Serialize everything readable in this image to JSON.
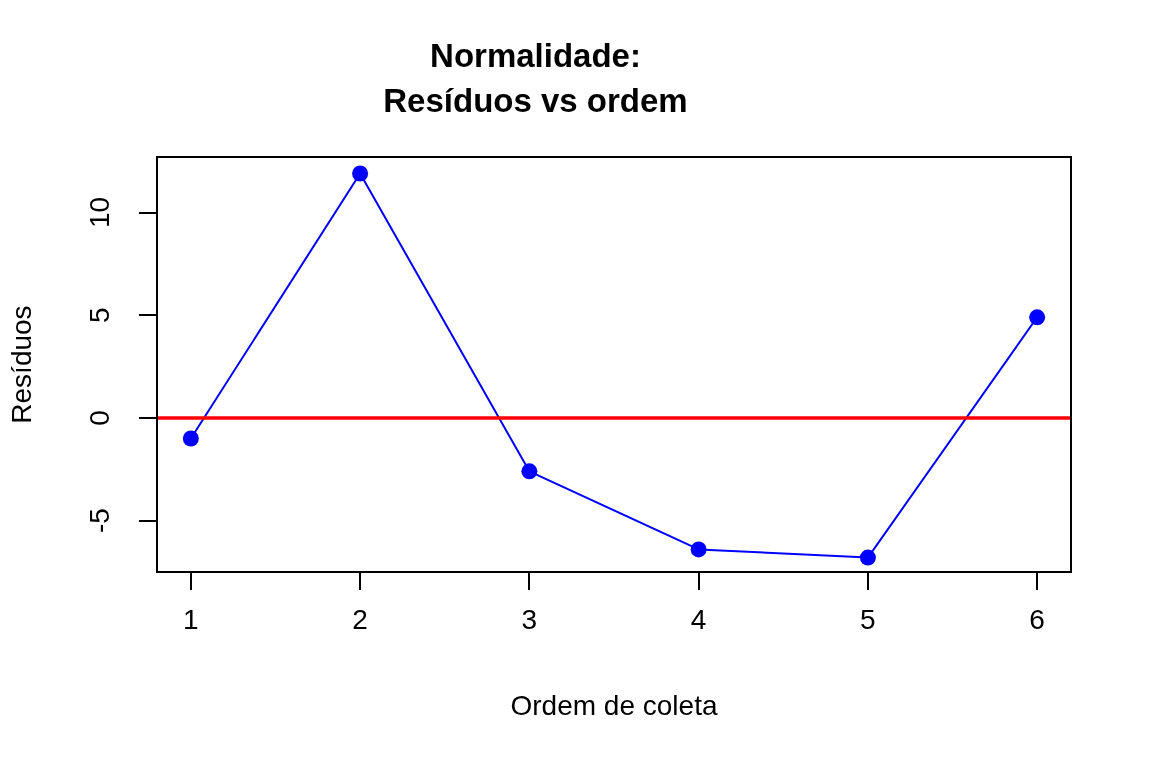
{
  "chart_data": {
    "type": "line",
    "title": "Normalidade:\nResíduos vs ordem",
    "xlabel": "Ordem de coleta",
    "ylabel": "Resíduos",
    "x": [
      1,
      2,
      3,
      4,
      5,
      6
    ],
    "series": [
      {
        "color": "#0000ff",
        "values": [
          -1.0,
          11.9,
          -2.6,
          -6.4,
          -6.8,
          4.9
        ]
      }
    ],
    "xlim": [
      0.8,
      6.2
    ],
    "xticks": [
      1,
      2,
      3,
      4,
      5,
      6
    ],
    "ylim": [
      -7.5,
      12.7
    ],
    "yticks": [
      -5,
      0,
      5,
      10
    ],
    "ref_lines": [
      {
        "axis": "y",
        "value": 0,
        "color": "#ff0000"
      }
    ],
    "marker": "circle",
    "line_style": "solid",
    "grid": false,
    "legend": false
  }
}
